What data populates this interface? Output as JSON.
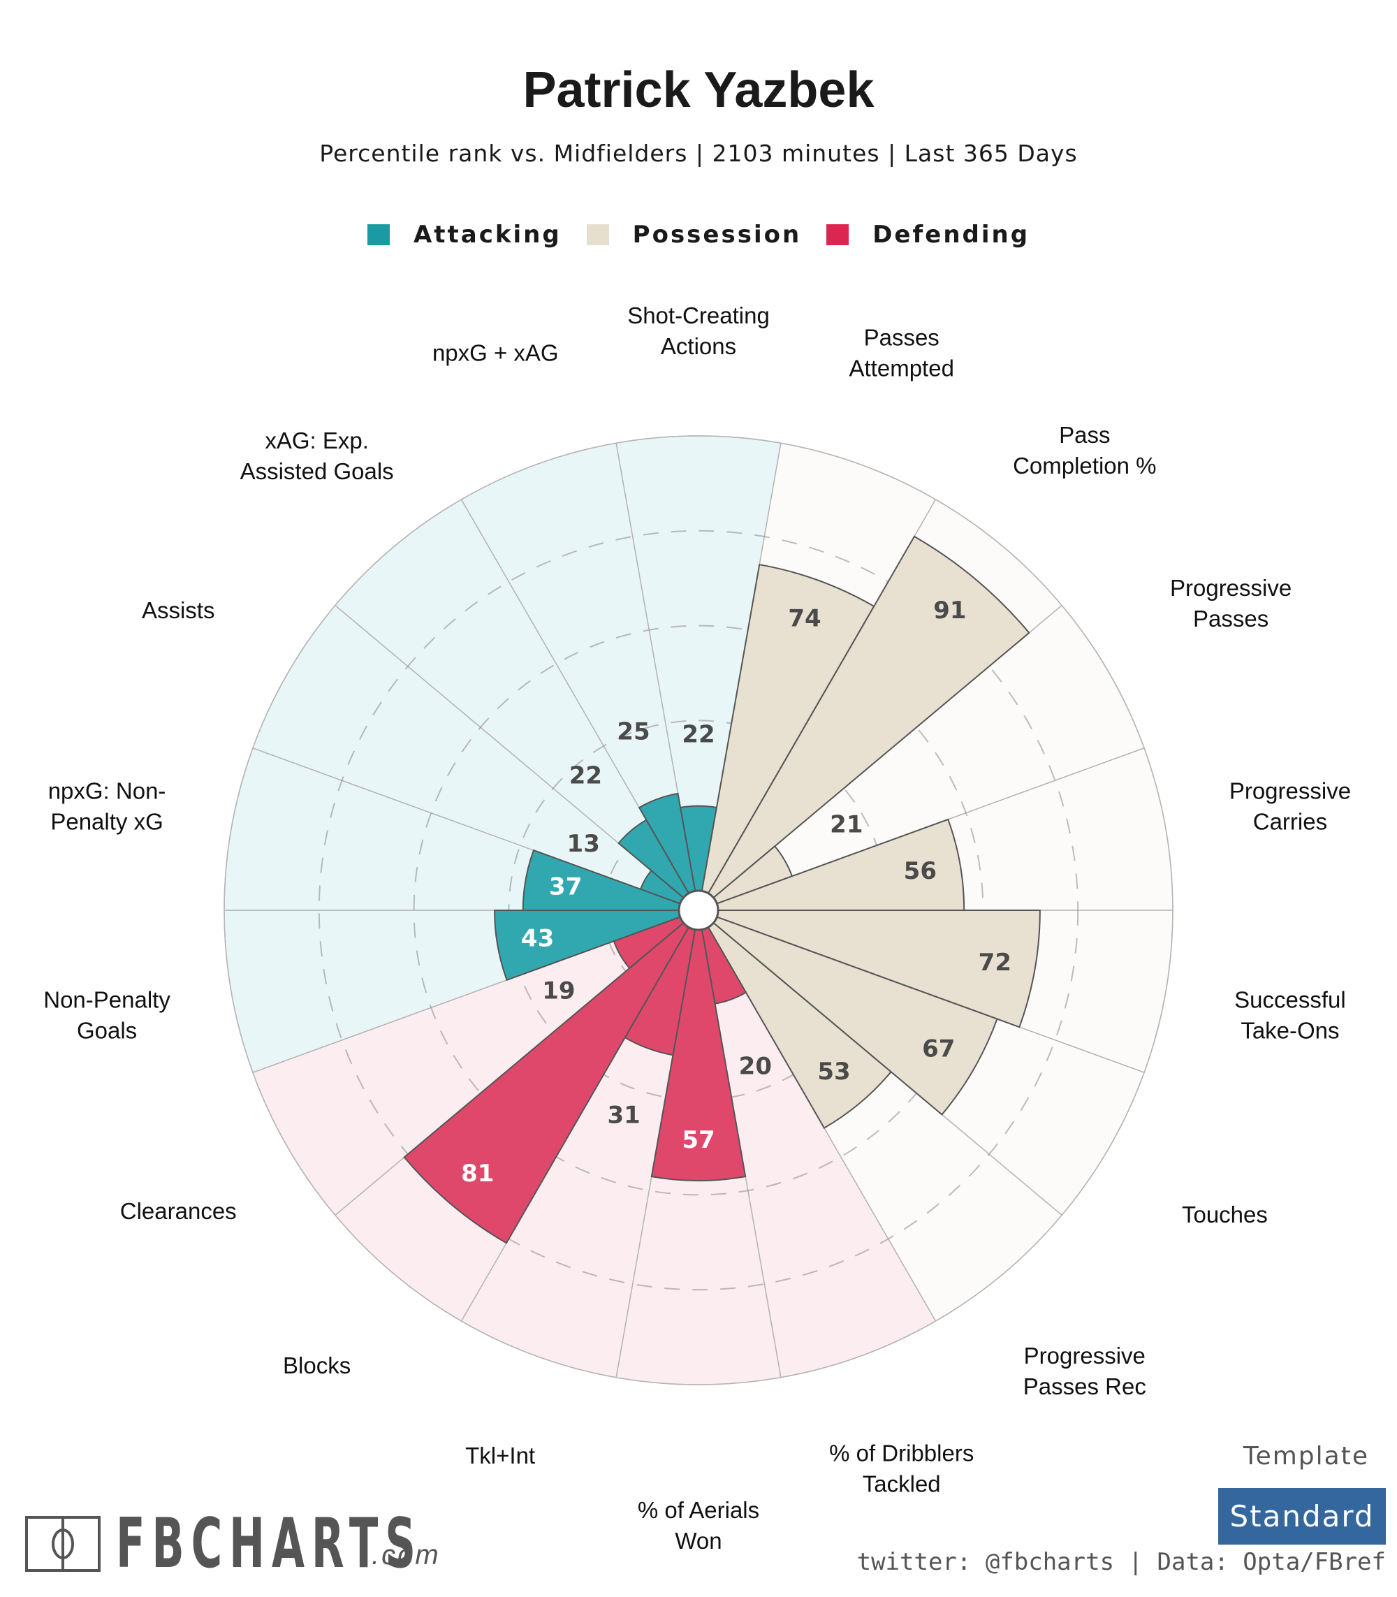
{
  "header": {
    "title": "Patrick Yazbek",
    "subtitle": "Percentile rank vs. Midfielders | 2103 minutes | Last 365 Days"
  },
  "legend": [
    {
      "label": "Attacking",
      "color": "#1a9ba1"
    },
    {
      "label": "Possession",
      "color": "#e6dfcd"
    },
    {
      "label": "Defending",
      "color": "#dc2551"
    }
  ],
  "footer": {
    "brand": "FBCHARTS",
    "brand_suffix": ".com",
    "template_label": "Template",
    "template_value": "Standard",
    "credit": "twitter: @fbcharts | Data: Opta/FBref"
  },
  "chart_data": {
    "type": "polar-bar",
    "title": "Patrick Yazbek",
    "subtitle": "Percentile rank vs. Midfielders | 2103 minutes | Last 365 Days",
    "rlim": [
      0,
      100
    ],
    "grid": {
      "rings": [
        20,
        40,
        60,
        80
      ],
      "style": "dashed"
    },
    "legend_position": "top-center",
    "direction": "clockwise-from-top",
    "groups": {
      "Attacking": {
        "bar": "#31a8b0",
        "bg": "#e9f6f7",
        "text_inside": "#ffffff"
      },
      "Possession": {
        "bar": "#e8e1d1",
        "bg": "#fcfbfa",
        "text_inside": "#4a4a4a"
      },
      "Defending": {
        "bar": "#e0486b",
        "bg": "#fcedf0",
        "text_inside": "#ffffff"
      }
    },
    "categories": [
      {
        "label": [
          "Shot-Creating",
          "Actions"
        ],
        "group": "Attacking",
        "value": 22
      },
      {
        "label": [
          "Passes",
          "Attempted"
        ],
        "group": "Possession",
        "value": 74
      },
      {
        "label": [
          "Pass",
          "Completion %"
        ],
        "group": "Possession",
        "value": 91
      },
      {
        "label": [
          "Progressive",
          "Passes"
        ],
        "group": "Possession",
        "value": 21
      },
      {
        "label": [
          "Progressive",
          "Carries"
        ],
        "group": "Possession",
        "value": 56
      },
      {
        "label": [
          "Successful",
          "Take-Ons"
        ],
        "group": "Possession",
        "value": 72
      },
      {
        "label": [
          "Touches"
        ],
        "group": "Possession",
        "value": 67
      },
      {
        "label": [
          "Progressive",
          "Passes Rec"
        ],
        "group": "Possession",
        "value": 53
      },
      {
        "label": [
          "% of Dribblers",
          "Tackled"
        ],
        "group": "Defending",
        "value": 20
      },
      {
        "label": [
          "% of Aerials",
          "Won"
        ],
        "group": "Defending",
        "value": 57
      },
      {
        "label": [
          "Tkl+Int"
        ],
        "group": "Defending",
        "value": 31
      },
      {
        "label": [
          "Blocks"
        ],
        "group": "Defending",
        "value": 81
      },
      {
        "label": [
          "Clearances"
        ],
        "group": "Defending",
        "value": 19
      },
      {
        "label": [
          "Non-Penalty",
          "Goals"
        ],
        "group": "Attacking",
        "value": 43
      },
      {
        "label": [
          "npxG: Non-",
          "Penalty xG"
        ],
        "group": "Attacking",
        "value": 37
      },
      {
        "label": [
          "Assists"
        ],
        "group": "Attacking",
        "value": 13
      },
      {
        "label": [
          "xAG: Exp.",
          "Assisted Goals"
        ],
        "group": "Attacking",
        "value": 22
      },
      {
        "label": [
          "npxG + xAG"
        ],
        "group": "Attacking",
        "value": 25
      }
    ]
  }
}
